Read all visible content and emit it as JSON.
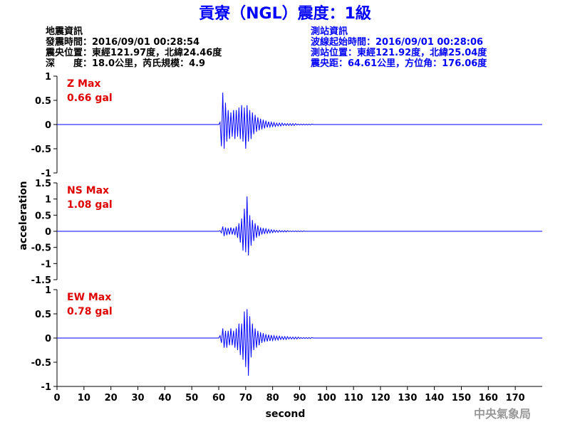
{
  "header": {
    "title": "貢寮（NGL）震度：1級",
    "event_info": [
      "地震資訊",
      "發震時間：2016/09/01 00:28:54",
      "震央位置：東經121.97度，北緯24.46度",
      "深　　度：18.0公里，芮氏規模：4.9"
    ],
    "station_info": [
      "測站資訊",
      "波線起始時間：2016/09/01 00:28:06",
      "測站位置：東經121.92度，北緯25.04度",
      "震央距：64.61公里，方位角：176.06度"
    ],
    "footer": "中央氣象局"
  },
  "chart_data": [
    {
      "type": "line",
      "annotations": [
        "Z Max",
        "0.66 gal"
      ],
      "color": "#0000ff",
      "annotation_color": "#e00000",
      "xlim": [
        0,
        180
      ],
      "ylim": [
        -1,
        1
      ],
      "yticks": [
        -1,
        -0.5,
        0,
        0.5,
        1
      ],
      "x": [
        0,
        60,
        60.5,
        61,
        61.5,
        62,
        62.5,
        63,
        63.5,
        64,
        64.5,
        65,
        65.5,
        66,
        66.5,
        67,
        67.5,
        68,
        68.5,
        69,
        69.5,
        70,
        70.5,
        71,
        71.5,
        72,
        72.5,
        73,
        73.5,
        74,
        74.5,
        75,
        75.5,
        76,
        76.5,
        77,
        77.5,
        78,
        78.5,
        79,
        79.5,
        80,
        80.5,
        81,
        81.5,
        82,
        82.5,
        83,
        83.5,
        84,
        84.5,
        85,
        85.5,
        86,
        86.5,
        87,
        87.5,
        88,
        88.5,
        89,
        89.5,
        90,
        90.5,
        91,
        91.5,
        92,
        92.5,
        93,
        93.5,
        94,
        94.5,
        95,
        180
      ],
      "values": [
        0,
        0,
        0.05,
        -0.45,
        0.66,
        -0.5,
        0.45,
        -0.35,
        0.3,
        -0.3,
        0.25,
        -0.25,
        0.3,
        -0.3,
        0.3,
        -0.25,
        0.35,
        -0.3,
        0.4,
        -0.35,
        0.35,
        -0.5,
        0.4,
        -0.35,
        0.3,
        -0.3,
        0.25,
        -0.2,
        0.2,
        -0.15,
        0.15,
        -0.12,
        0.12,
        -0.1,
        0.1,
        -0.08,
        0.08,
        -0.06,
        0.06,
        -0.05,
        0.05,
        -0.04,
        0.04,
        -0.04,
        0.03,
        -0.03,
        0.03,
        -0.03,
        0.03,
        -0.02,
        0.02,
        -0.02,
        0.02,
        -0.02,
        0.02,
        -0.02,
        0.02,
        -0.02,
        0.02,
        -0.01,
        0.01,
        -0.01,
        0.01,
        -0.01,
        0.01,
        -0.01,
        0.01,
        -0.01,
        0.01,
        -0.01,
        0.01,
        0,
        0
      ]
    },
    {
      "type": "line",
      "annotations": [
        "NS Max",
        "1.08 gal"
      ],
      "color": "#0000ff",
      "annotation_color": "#e00000",
      "ylabel": "acceleration",
      "xlim": [
        0,
        180
      ],
      "ylim": [
        -1.5,
        1.5
      ],
      "yticks": [
        -1.5,
        -1,
        -0.5,
        0,
        0.5,
        1,
        1.5
      ],
      "x": [
        0,
        60,
        60.5,
        61,
        61.5,
        62,
        62.5,
        63,
        63.5,
        64,
        64.5,
        65,
        65.5,
        66,
        66.5,
        67,
        67.5,
        68,
        68.5,
        69,
        69.5,
        70,
        70.5,
        71,
        71.5,
        72,
        72.5,
        73,
        73.5,
        74,
        74.5,
        75,
        75.5,
        76,
        76.5,
        77,
        77.5,
        78,
        78.5,
        79,
        79.5,
        80,
        80.5,
        81,
        81.5,
        82,
        82.5,
        83,
        83.5,
        84,
        84.5,
        85,
        85.5,
        86,
        86.5,
        87,
        87.5,
        88,
        88.5,
        89,
        89.5,
        90,
        90.5,
        91,
        91.5,
        92,
        92.5,
        93,
        93.5,
        94,
        94.5,
        95,
        180
      ],
      "values": [
        0,
        0,
        0.02,
        -0.05,
        0.15,
        -0.15,
        0.12,
        -0.12,
        0.1,
        -0.1,
        0.12,
        -0.1,
        0.1,
        -0.12,
        0.15,
        -0.2,
        0.25,
        -0.35,
        0.4,
        -0.6,
        0.7,
        -0.65,
        1.08,
        -0.75,
        0.5,
        -0.45,
        0.35,
        -0.3,
        0.25,
        -0.2,
        0.18,
        -0.15,
        0.12,
        -0.1,
        0.1,
        -0.08,
        0.08,
        -0.06,
        0.06,
        -0.05,
        0.05,
        -0.04,
        0.04,
        -0.03,
        0.03,
        -0.03,
        0.03,
        -0.02,
        0.02,
        -0.02,
        0.02,
        -0.02,
        0.02,
        -0.01,
        0.01,
        -0.01,
        0.01,
        -0.01,
        0.01,
        -0.01,
        0.01,
        -0.01,
        0.01,
        -0.01,
        0.01,
        0,
        0,
        0,
        0,
        0,
        0,
        0,
        0
      ]
    },
    {
      "type": "line",
      "annotations": [
        "EW Max",
        "0.78 gal"
      ],
      "color": "#0000ff",
      "annotation_color": "#e00000",
      "xlabel": "second",
      "xlim": [
        0,
        180
      ],
      "xticks": [
        0,
        10,
        20,
        30,
        40,
        50,
        60,
        70,
        80,
        90,
        100,
        110,
        120,
        130,
        140,
        150,
        160,
        170
      ],
      "ylim": [
        -1,
        1
      ],
      "yticks": [
        -1,
        -0.5,
        0,
        0.5,
        1
      ],
      "x": [
        0,
        60,
        60.5,
        61,
        61.5,
        62,
        62.5,
        63,
        63.5,
        64,
        64.5,
        65,
        65.5,
        66,
        66.5,
        67,
        67.5,
        68,
        68.5,
        69,
        69.5,
        70,
        70.5,
        71,
        71.5,
        72,
        72.5,
        73,
        73.5,
        74,
        74.5,
        75,
        75.5,
        76,
        76.5,
        77,
        77.5,
        78,
        78.5,
        79,
        79.5,
        80,
        80.5,
        81,
        81.5,
        82,
        82.5,
        83,
        83.5,
        84,
        84.5,
        85,
        85.5,
        86,
        86.5,
        87,
        87.5,
        88,
        88.5,
        89,
        89.5,
        90,
        90.5,
        91,
        91.5,
        92,
        92.5,
        93,
        93.5,
        94,
        94.5,
        95,
        180
      ],
      "values": [
        0,
        0,
        0.05,
        -0.1,
        0.2,
        -0.2,
        0.15,
        -0.2,
        0.15,
        -0.15,
        0.2,
        -0.15,
        0.15,
        -0.2,
        0.2,
        -0.25,
        0.3,
        -0.35,
        0.3,
        -0.45,
        0.55,
        -0.6,
        0.6,
        -0.78,
        0.45,
        -0.4,
        0.3,
        -0.25,
        0.2,
        -0.2,
        0.15,
        -0.15,
        0.12,
        -0.1,
        0.1,
        -0.08,
        0.08,
        -0.07,
        0.07,
        -0.06,
        0.06,
        -0.05,
        0.05,
        -0.04,
        0.04,
        -0.04,
        0.04,
        -0.03,
        0.03,
        -0.03,
        0.03,
        -0.03,
        0.03,
        -0.02,
        0.02,
        -0.02,
        0.02,
        -0.02,
        0.02,
        -0.02,
        0.02,
        -0.01,
        0.01,
        -0.01,
        0.01,
        -0.01,
        0.01,
        -0.01,
        0.01,
        -0.01,
        0.01,
        0,
        0
      ]
    }
  ]
}
